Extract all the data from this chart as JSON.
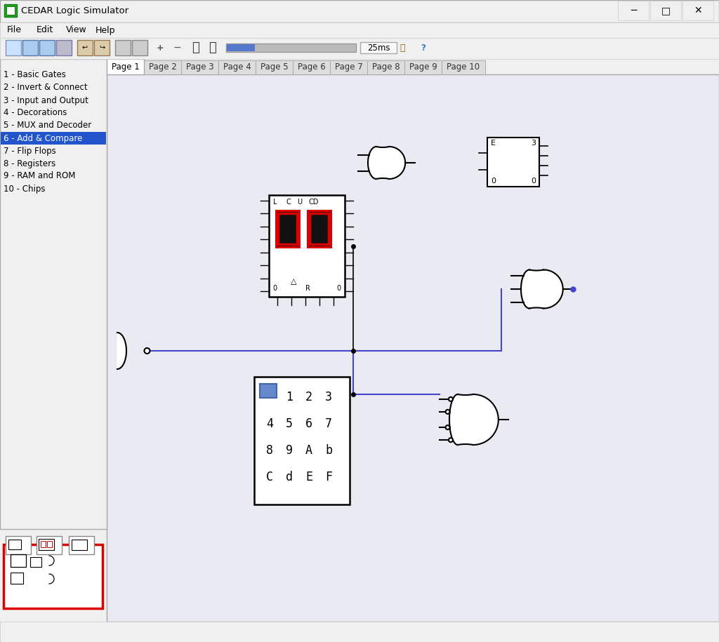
{
  "title": "CEDAR Logic Simulator",
  "bg_color": "#f0f0f0",
  "canvas_bg": "#eaeaf2",
  "grid_color": "#d4d4e4",
  "wire_color": "#4444cc",
  "gate_lw": 1.5,
  "sidebar_items": [
    "1 - Basic Gates",
    "2 - Invert & Connect",
    "3 - Input and Output",
    "4 - Decorations",
    "5 - MUX and Decoder",
    "6 - Add & Compare",
    "7 - Flip Flops",
    "8 - Registers",
    "9 - RAM and ROM",
    "10 - Chips"
  ],
  "selected_item_idx": 5,
  "tabs": [
    "Page 1",
    "Page 2",
    "Page 3",
    "Page 4",
    "Page 5",
    "Page 6",
    "Page 7",
    "Page 8",
    "Page 9",
    "Page 10"
  ],
  "menu_items": [
    "File",
    "Edit",
    "View",
    "Help"
  ],
  "red_seg_color": "#dd0000",
  "seg_bg_color": "#cc0000"
}
